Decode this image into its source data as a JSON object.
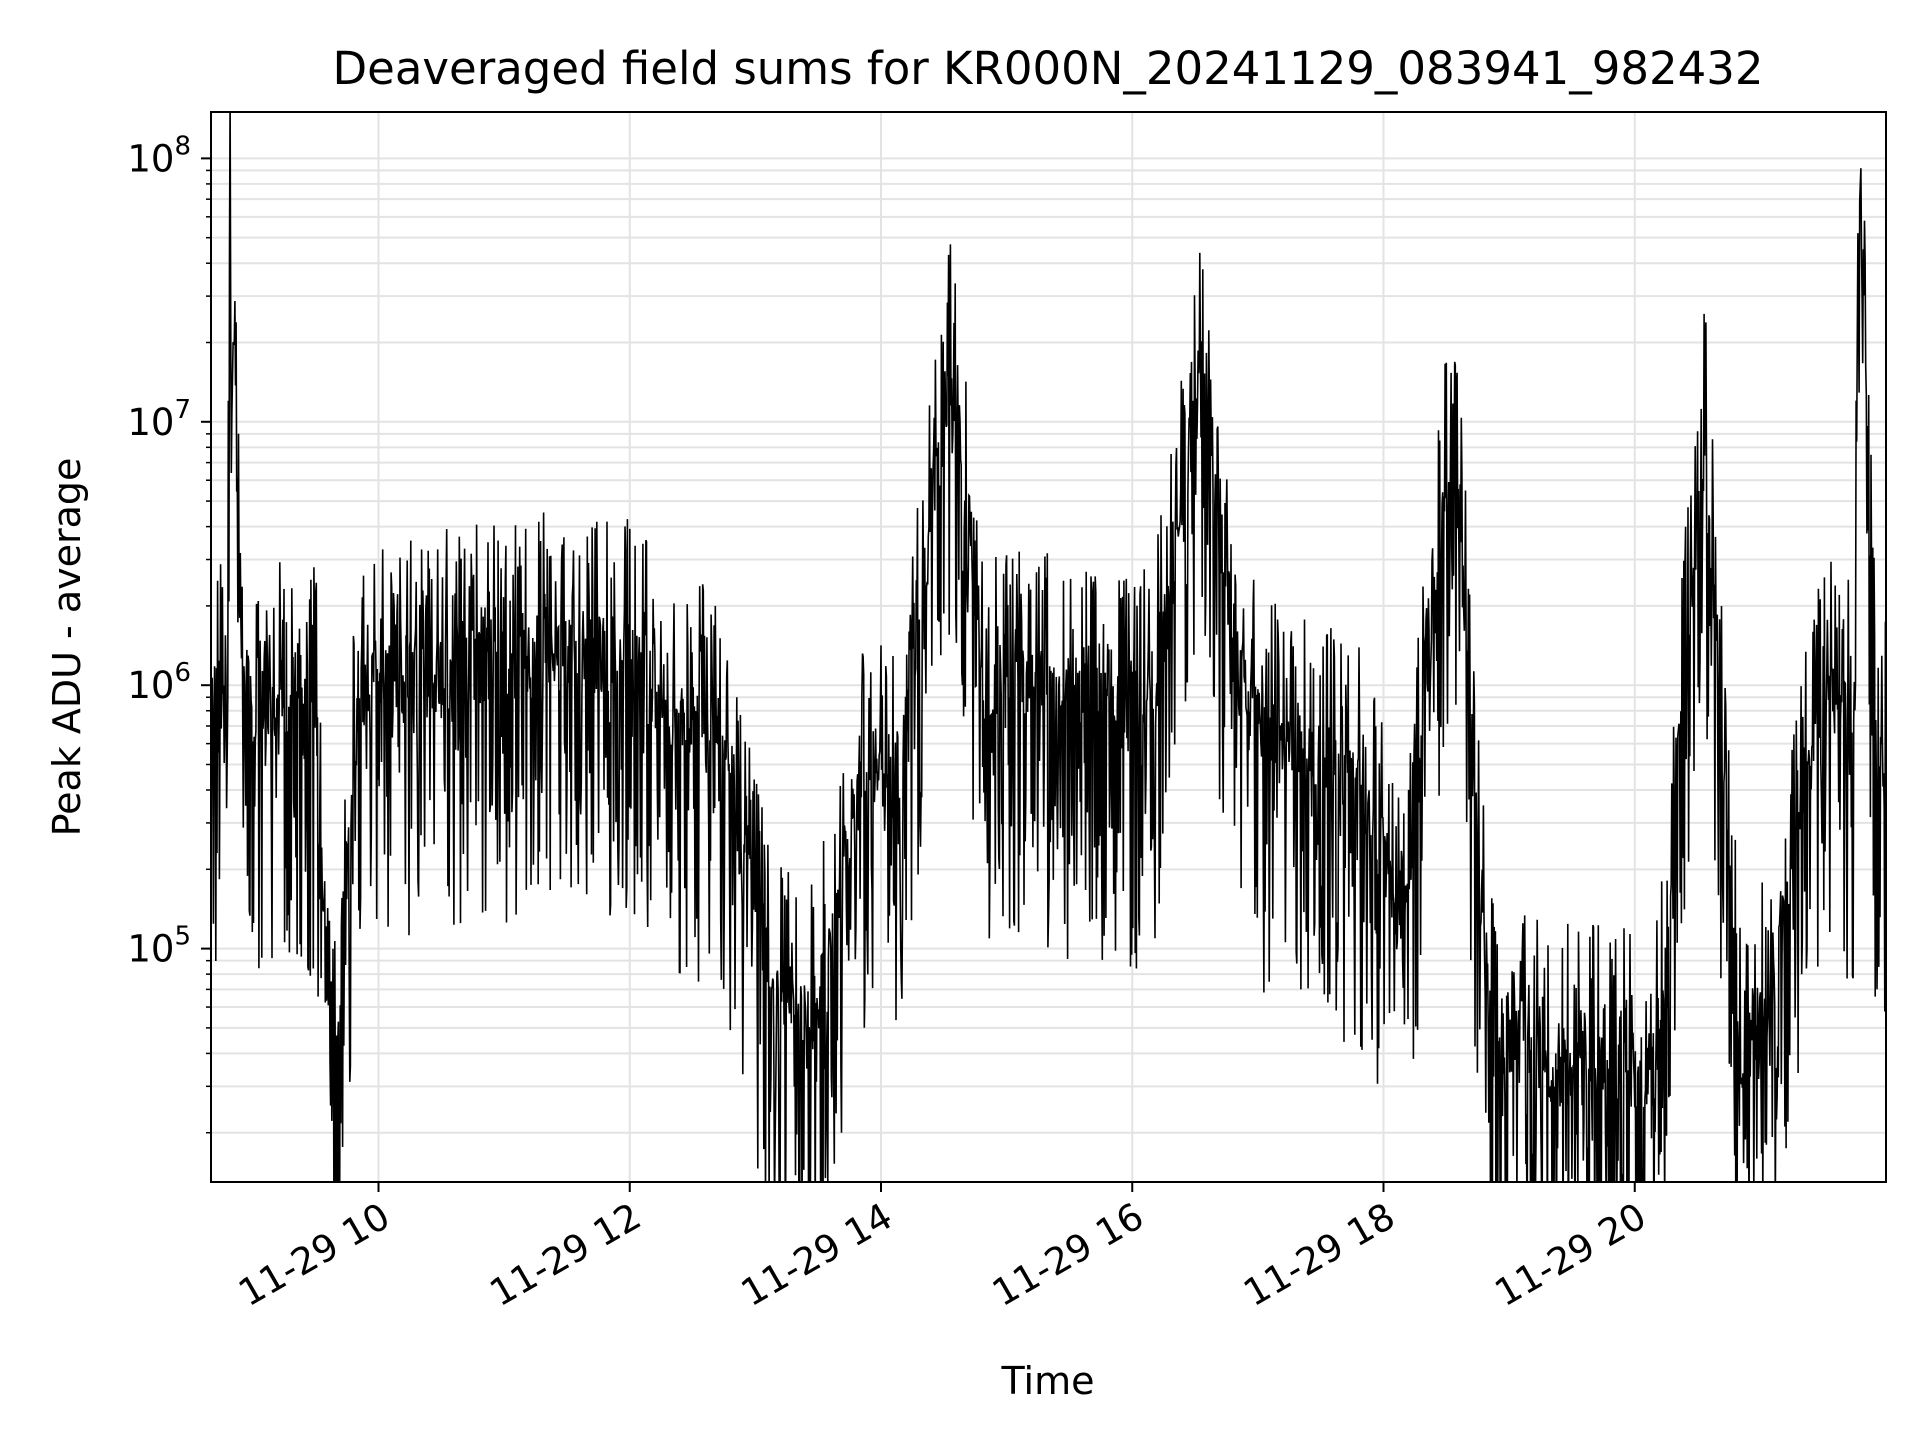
{
  "chart_data": {
    "type": "line",
    "title": "Deaveraged field sums for KR000N_20241129_083941_982432",
    "xlabel": "Time",
    "ylabel": "Peak ADU - average",
    "x_range": [
      "2024-11-29 08:40",
      "2024-11-29 22:00"
    ],
    "ylim": [
      13000,
      150000000
    ],
    "yscale": "log",
    "x_ticks": [
      {
        "t": "2024-11-29 10:00",
        "label": "11-29 10"
      },
      {
        "t": "2024-11-29 12:00",
        "label": "11-29 12"
      },
      {
        "t": "2024-11-29 14:00",
        "label": "11-29 14"
      },
      {
        "t": "2024-11-29 16:00",
        "label": "11-29 16"
      },
      {
        "t": "2024-11-29 18:00",
        "label": "11-29 18"
      },
      {
        "t": "2024-11-29 20:00",
        "label": "11-29 20"
      }
    ],
    "y_ticks": [
      {
        "value": 100000,
        "base": "10",
        "exp": "5"
      },
      {
        "value": 1000000,
        "base": "10",
        "exp": "6"
      },
      {
        "value": 10000000,
        "base": "10",
        "exp": "7"
      },
      {
        "value": 100000000,
        "base": "10",
        "exp": "8"
      }
    ],
    "grid": true,
    "line_color": "#000000",
    "grid_color": "#e3e3e3",
    "series": [
      {
        "x": [
          "2024-11-29 08:40",
          "2024-11-29 08:48",
          "2024-11-29 08:49",
          "2024-11-29 08:55",
          "2024-11-29 09:00",
          "2024-11-29 09:10",
          "2024-11-29 09:20",
          "2024-11-29 09:30",
          "2024-11-29 09:38",
          "2024-11-29 09:50",
          "2024-11-29 10:00",
          "2024-11-29 10:20",
          "2024-11-29 10:40",
          "2024-11-29 11:00",
          "2024-11-29 11:20",
          "2024-11-29 11:40",
          "2024-11-29 12:00",
          "2024-11-29 12:20",
          "2024-11-29 12:40",
          "2024-11-29 12:55",
          "2024-11-29 13:10",
          "2024-11-29 13:30",
          "2024-11-29 13:50",
          "2024-11-29 14:10",
          "2024-11-29 14:33",
          "2024-11-29 14:50",
          "2024-11-29 15:10",
          "2024-11-29 15:30",
          "2024-11-29 15:50",
          "2024-11-29 16:10",
          "2024-11-29 16:33",
          "2024-11-29 16:50",
          "2024-11-29 17:10",
          "2024-11-29 17:30",
          "2024-11-29 17:50",
          "2024-11-29 18:10",
          "2024-11-29 18:33",
          "2024-11-29 18:50",
          "2024-11-29 19:10",
          "2024-11-29 19:30",
          "2024-11-29 19:50",
          "2024-11-29 20:10",
          "2024-11-29 20:33",
          "2024-11-29 20:50",
          "2024-11-29 21:05",
          "2024-11-29 21:20",
          "2024-11-29 21:30",
          "2024-11-29 21:45",
          "2024-11-29 21:47",
          "2024-11-29 21:55",
          "2024-11-29 22:00"
        ],
        "y": [
          800000,
          1000000,
          72000000,
          900000,
          800000,
          900000,
          700000,
          800000,
          26000,
          900000,
          1000000,
          1000000,
          1200000,
          1200000,
          1300000,
          1400000,
          1200000,
          800000,
          700000,
          200000,
          60000,
          60000,
          400000,
          500000,
          16000000,
          900000,
          1000000,
          900000,
          800000,
          800000,
          15000000,
          800000,
          600000,
          500000,
          400000,
          120000,
          11000000,
          50000,
          40000,
          35000,
          35000,
          35000,
          9400000,
          40000,
          60000,
          350000,
          900000,
          700000,
          93000000,
          600000,
          500000
        ]
      }
    ]
  }
}
